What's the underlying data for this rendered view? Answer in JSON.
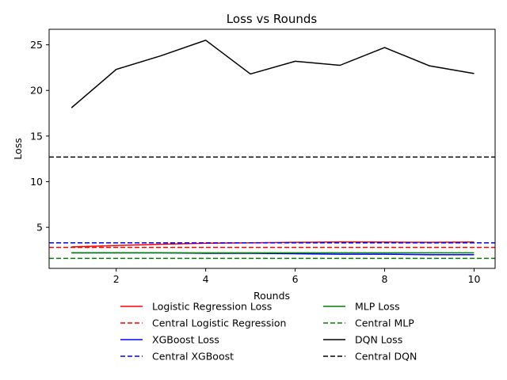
{
  "chart_data": {
    "type": "line",
    "title": "Loss vs Rounds",
    "xlabel": "Rounds",
    "ylabel": "Loss",
    "xlim": [
      0.5,
      10.47
    ],
    "ylim": [
      0.5,
      26.7
    ],
    "xticks": [
      2,
      4,
      6,
      8,
      10
    ],
    "yticks": [
      5,
      10,
      15,
      20,
      25
    ],
    "grid": false,
    "legend_position": "bottom-center",
    "x": [
      1,
      2,
      3,
      4,
      5,
      6,
      7,
      8,
      9,
      10
    ],
    "series": [
      {
        "name": "Logistic Regression Loss",
        "color": "#ff0000",
        "style": "solid",
        "values": [
          2.85,
          3.0,
          3.15,
          3.25,
          3.3,
          3.35,
          3.4,
          3.38,
          3.35,
          3.38
        ]
      },
      {
        "name": "Central Logistic Regression",
        "color": "#ff0000",
        "style": "dashed",
        "constant": 2.8
      },
      {
        "name": "XGBoost Loss",
        "color": "#0000ff",
        "style": "solid",
        "values": [
          2.2,
          2.2,
          2.2,
          2.15,
          2.15,
          2.1,
          2.05,
          2.05,
          2.0,
          2.0
        ]
      },
      {
        "name": "Central XGBoost",
        "color": "#0000ff",
        "style": "dashed",
        "constant": 3.3
      },
      {
        "name": "MLP Loss",
        "color": "#008000",
        "style": "solid",
        "values": [
          2.2,
          2.2,
          2.2,
          2.2,
          2.2,
          2.2,
          2.2,
          2.2,
          2.2,
          2.2
        ]
      },
      {
        "name": "Central MLP",
        "color": "#008000",
        "style": "dashed",
        "constant": 1.6
      },
      {
        "name": "DQN Loss",
        "color": "#000000",
        "style": "solid",
        "values": [
          18.1,
          22.3,
          23.8,
          25.5,
          21.8,
          23.2,
          22.75,
          24.7,
          22.7,
          21.85
        ]
      },
      {
        "name": "Central DQN",
        "color": "#000000",
        "style": "dashed",
        "constant": 12.7
      }
    ]
  }
}
